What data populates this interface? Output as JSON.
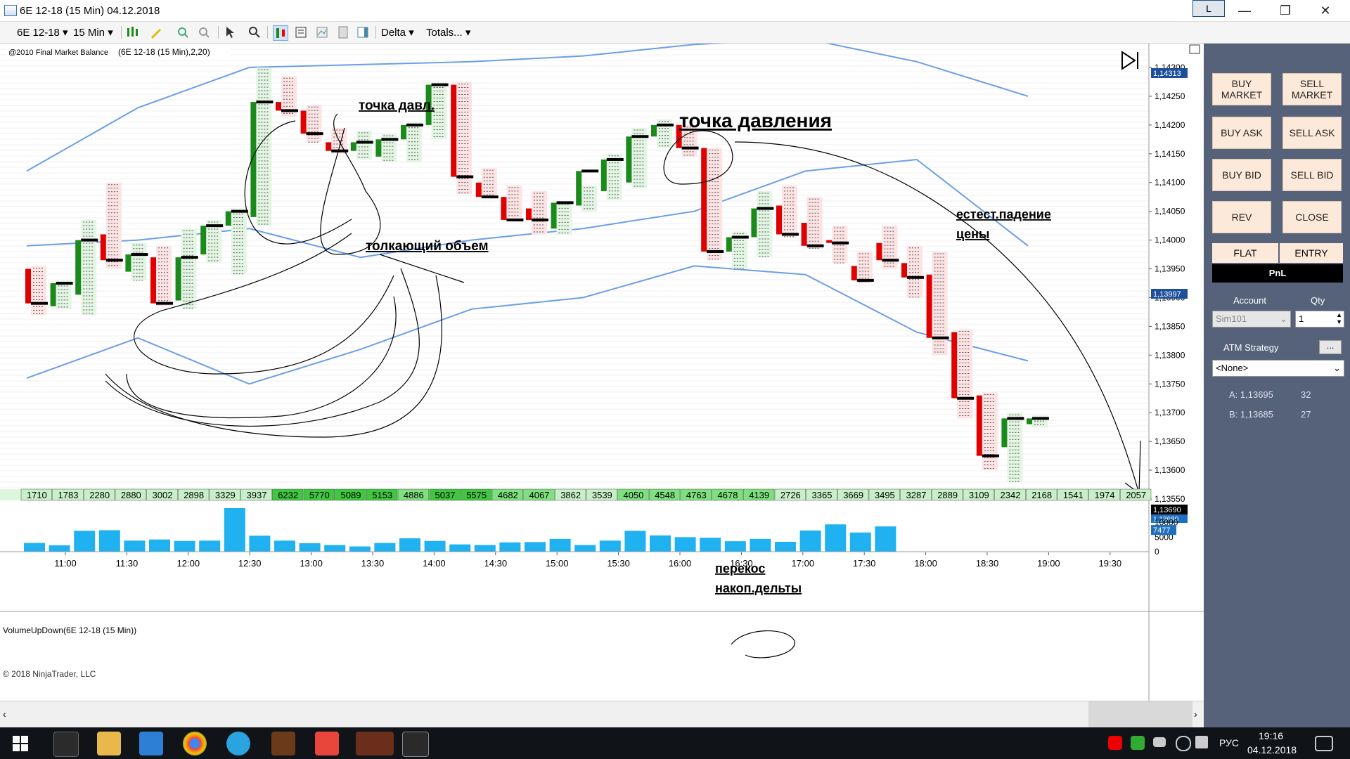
{
  "window": {
    "title": "6E 12-18 (15 Min)  04.12.2018",
    "account_btn": "L",
    "minimize": "—",
    "restore": "❐",
    "close": "✕"
  },
  "toolbar": {
    "instrument": "6E 12-18",
    "interval": "15 Min",
    "indicator": "Delta",
    "totals": "Totals..."
  },
  "chart": {
    "indicator_label": "@2010 Final Market Balance",
    "indicator_params": "(6E 12-18 (15 Min),2,20)",
    "price_ticks": [
      "1,14300",
      "1,14250",
      "1,14200",
      "1,14150",
      "1,14100",
      "1,14050",
      "1,14000",
      "1,13950",
      "1,13900",
      "1,13850",
      "1,13800",
      "1,13750",
      "1,13700",
      "1,13650",
      "1,13600",
      "1,13550"
    ],
    "price_markers": {
      "top": "1,14313",
      "mid": "1,13997",
      "current": "1,13690",
      "bid": "1,13680"
    },
    "annotations": {
      "pressure_point_short": "точка давл.",
      "pressure_point": "точка давления",
      "pushing_volume": "толкающий объем",
      "natural_drop_1": "естест.падение",
      "natural_drop_2": "цены",
      "delta_skew_1": "перекос",
      "delta_skew_2": "накоп.дельты"
    },
    "totals_row": [
      "1710",
      "1783",
      "2280",
      "2880",
      "3002",
      "2898",
      "3329",
      "3937",
      "6232",
      "5770",
      "5089",
      "5153",
      "4886",
      "5037",
      "5575",
      "4682",
      "4067",
      "3862",
      "3539",
      "4050",
      "4548",
      "4763",
      "4678",
      "4139",
      "2726",
      "3365",
      "3669",
      "3495",
      "3287",
      "2889",
      "3109",
      "2342",
      "2168",
      "1541",
      "1974",
      "2057"
    ],
    "volume_panel_label": "VolumeUpDown(6E 12-18 (15 Min))",
    "volume_ticks": [
      "10000",
      "5000",
      "0"
    ],
    "volume_marker": "7477",
    "volume_values": [
      3000,
      2200,
      7200,
      7400,
      3800,
      4200,
      3700,
      3800,
      15000,
      5500,
      3800,
      2900,
      2300,
      1800,
      3000,
      4600,
      3700,
      2500,
      2300,
      3200,
      3300,
      4400,
      2300,
      3800,
      7200,
      5600,
      5000,
      4800,
      3600,
      4400,
      3400,
      7300,
      9400,
      6600,
      8700
    ],
    "time_ticks": [
      "11:00",
      "11:30",
      "12:00",
      "12:30",
      "13:00",
      "13:30",
      "14:00",
      "14:30",
      "15:00",
      "15:30",
      "16:00",
      "16:30",
      "17:00",
      "17:30",
      "18:00",
      "18:30",
      "19:00",
      "19:30"
    ],
    "copyright": "© 2018 NinjaTrader, LLC"
  },
  "panel": {
    "buy_market": "BUY\nMARKET",
    "sell_market": "SELL\nMARKET",
    "buy_ask": "BUY ASK",
    "sell_ask": "SELL ASK",
    "buy_bid": "BUY BID",
    "sell_bid": "SELL BID",
    "rev": "REV",
    "close": "CLOSE",
    "flat": "FLAT",
    "entry": "ENTRY",
    "pnl": "PnL",
    "account_label": "Account",
    "qty_label": "Qty",
    "account_value": "Sim101",
    "qty_value": "1",
    "atm_label": "ATM Strategy",
    "atm_value": "<None>",
    "ask_label": "A: 1,13695",
    "ask_size": "32",
    "bid_label": "B: 1,13685",
    "bid_size": "27"
  },
  "taskbar": {
    "lang": "РУС",
    "time": "19:16",
    "date": "04.12.2018"
  },
  "colors": {
    "up": "#1a8a1a",
    "down": "#e00000",
    "band": "#6c9ee8",
    "volume": "#1fb1f0",
    "panel_bg": "#55627a",
    "btn_bg": "#fde9d9"
  },
  "bars": [
    {
      "o": 1.1395,
      "c": 1.1389,
      "h": 1.13955,
      "l": 1.1387
    },
    {
      "o": 1.13885,
      "c": 1.13925,
      "h": 1.1393,
      "l": 1.1388
    },
    {
      "o": 1.13905,
      "c": 1.14,
      "h": 1.14035,
      "l": 1.1387
    },
    {
      "o": 1.1401,
      "c": 1.13965,
      "h": 1.141,
      "l": 1.1395
    },
    {
      "o": 1.13945,
      "c": 1.13975,
      "h": 1.13995,
      "l": 1.1393
    },
    {
      "o": 1.1397,
      "c": 1.1389,
      "h": 1.1399,
      "l": 1.13885
    },
    {
      "o": 1.13895,
      "c": 1.1397,
      "h": 1.1402,
      "l": 1.1388
    },
    {
      "o": 1.13975,
      "c": 1.14025,
      "h": 1.14035,
      "l": 1.1396
    },
    {
      "o": 1.14025,
      "c": 1.1405,
      "h": 1.14055,
      "l": 1.1394
    },
    {
      "o": 1.1404,
      "c": 1.1424,
      "h": 1.143,
      "l": 1.14025
    },
    {
      "o": 1.1424,
      "c": 1.14225,
      "h": 1.14285,
      "l": 1.14215
    },
    {
      "o": 1.14225,
      "c": 1.14185,
      "h": 1.14235,
      "l": 1.1417
    },
    {
      "o": 1.1417,
      "c": 1.14155,
      "h": 1.14195,
      "l": 1.1415
    },
    {
      "o": 1.14155,
      "c": 1.1417,
      "h": 1.1419,
      "l": 1.1414
    },
    {
      "o": 1.14145,
      "c": 1.14175,
      "h": 1.14185,
      "l": 1.14135
    },
    {
      "o": 1.14175,
      "c": 1.142,
      "h": 1.14205,
      "l": 1.14135
    },
    {
      "o": 1.142,
      "c": 1.1427,
      "h": 1.14275,
      "l": 1.14175
    },
    {
      "o": 1.1427,
      "c": 1.1411,
      "h": 1.14275,
      "l": 1.1408
    },
    {
      "o": 1.141,
      "c": 1.14075,
      "h": 1.14125,
      "l": 1.14075
    },
    {
      "o": 1.14075,
      "c": 1.14035,
      "h": 1.14095,
      "l": 1.14035
    },
    {
      "o": 1.14055,
      "c": 1.14035,
      "h": 1.14085,
      "l": 1.1401
    },
    {
      "o": 1.1402,
      "c": 1.14065,
      "h": 1.14065,
      "l": 1.1401
    },
    {
      "o": 1.1406,
      "c": 1.1412,
      "h": 1.14095,
      "l": 1.1405
    },
    {
      "o": 1.14085,
      "c": 1.1414,
      "h": 1.1415,
      "l": 1.1407
    },
    {
      "o": 1.141,
      "c": 1.1418,
      "h": 1.14195,
      "l": 1.1409
    },
    {
      "o": 1.1418,
      "c": 1.142,
      "h": 1.1421,
      "l": 1.1416
    },
    {
      "o": 1.142,
      "c": 1.1416,
      "h": 1.142,
      "l": 1.14145
    },
    {
      "o": 1.1416,
      "c": 1.1398,
      "h": 1.1416,
      "l": 1.13965
    },
    {
      "o": 1.1398,
      "c": 1.14005,
      "h": 1.14015,
      "l": 1.1395
    },
    {
      "o": 1.14005,
      "c": 1.14055,
      "h": 1.14085,
      "l": 1.1397
    },
    {
      "o": 1.1406,
      "c": 1.1401,
      "h": 1.14095,
      "l": 1.14005
    },
    {
      "o": 1.1403,
      "c": 1.1399,
      "h": 1.14075,
      "l": 1.13985
    },
    {
      "o": 1.14,
      "c": 1.13995,
      "h": 1.14025,
      "l": 1.1396
    },
    {
      "o": 1.13955,
      "c": 1.1393,
      "h": 1.1398,
      "l": 1.13925
    },
    {
      "o": 1.13995,
      "c": 1.13965,
      "h": 1.14025,
      "l": 1.1395
    },
    {
      "o": 1.1396,
      "c": 1.13935,
      "h": 1.1399,
      "l": 1.139
    },
    {
      "o": 1.1394,
      "c": 1.1383,
      "h": 1.1398,
      "l": 1.138
    },
    {
      "o": 1.1384,
      "c": 1.13725,
      "h": 1.13845,
      "l": 1.1369
    },
    {
      "o": 1.1373,
      "c": 1.13625,
      "h": 1.13735,
      "l": 1.136
    },
    {
      "o": 1.1364,
      "c": 1.1369,
      "h": 1.137,
      "l": 1.1358
    },
    {
      "o": 1.1368,
      "c": 1.1369,
      "h": 1.13695,
      "l": 1.13675
    }
  ],
  "band_upper": [
    1.1412,
    1.1423,
    1.143,
    1.14305,
    1.1431,
    1.1432,
    1.1434,
    1.1435,
    1.1431,
    1.1425
  ],
  "band_mid": [
    1.1399,
    1.14,
    1.1402,
    1.1397,
    1.14,
    1.1402,
    1.1405,
    1.1412,
    1.1414,
    1.1399
  ],
  "band_lower": [
    1.1376,
    1.1383,
    1.1375,
    1.1381,
    1.1388,
    1.139,
    1.13955,
    1.1394,
    1.1384,
    1.1379
  ]
}
